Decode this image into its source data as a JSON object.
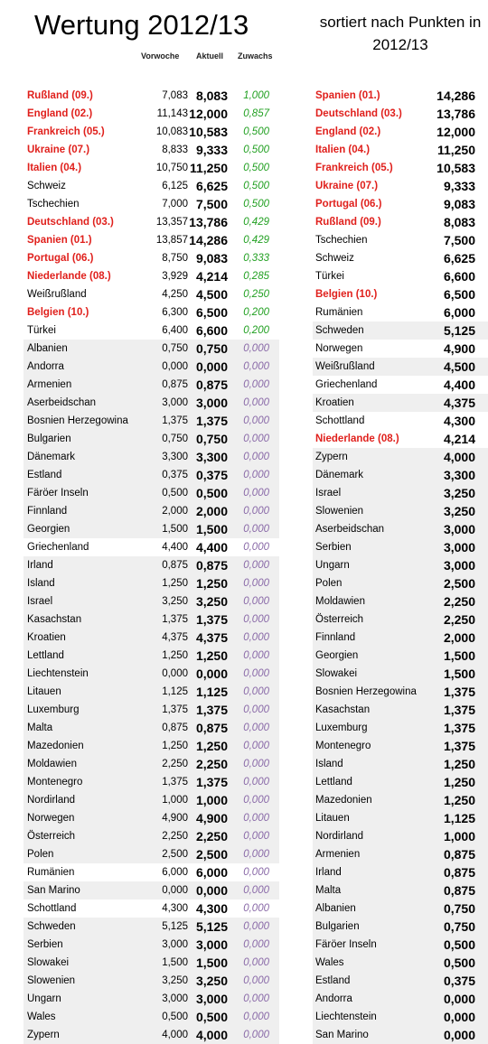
{
  "title": "Wertung 2012/13",
  "subtitle": "sortiert nach Punkten in 2012/13",
  "headers": {
    "prev": "Vorwoche",
    "cur": "Aktuell",
    "gain": "Zuwachs"
  },
  "colors": {
    "highlight": "#e0201c",
    "gain_positive": "#22a022",
    "gain_zero": "#8a6aa8",
    "shade": "#efefef"
  },
  "left_table": [
    {
      "name": "Rußland (09.)",
      "prev": "7,083",
      "cur": "8,083",
      "gain": "1,000",
      "highlight": true
    },
    {
      "name": "England (02.)",
      "prev": "11,143",
      "cur": "12,000",
      "gain": "0,857",
      "highlight": true
    },
    {
      "name": "Frankreich (05.)",
      "prev": "10,083",
      "cur": "10,583",
      "gain": "0,500",
      "highlight": true
    },
    {
      "name": "Ukraine (07.)",
      "prev": "8,833",
      "cur": "9,333",
      "gain": "0,500",
      "highlight": true
    },
    {
      "name": "Italien (04.)",
      "prev": "10,750",
      "cur": "11,250",
      "gain": "0,500",
      "highlight": true
    },
    {
      "name": "Schweiz",
      "prev": "6,125",
      "cur": "6,625",
      "gain": "0,500",
      "highlight": false
    },
    {
      "name": "Tschechien",
      "prev": "7,000",
      "cur": "7,500",
      "gain": "0,500",
      "highlight": false
    },
    {
      "name": "Deutschland (03.)",
      "prev": "13,357",
      "cur": "13,786",
      "gain": "0,429",
      "highlight": true
    },
    {
      "name": "Spanien (01.)",
      "prev": "13,857",
      "cur": "14,286",
      "gain": "0,429",
      "highlight": true
    },
    {
      "name": "Portugal (06.)",
      "prev": "8,750",
      "cur": "9,083",
      "gain": "0,333",
      "highlight": true
    },
    {
      "name": "Niederlande (08.)",
      "prev": "3,929",
      "cur": "4,214",
      "gain": "0,285",
      "highlight": true
    },
    {
      "name": "Weißrußland",
      "prev": "4,250",
      "cur": "4,500",
      "gain": "0,250",
      "highlight": false
    },
    {
      "name": "Belgien (10.)",
      "prev": "6,300",
      "cur": "6,500",
      "gain": "0,200",
      "highlight": true
    },
    {
      "name": "Türkei",
      "prev": "6,400",
      "cur": "6,600",
      "gain": "0,200",
      "highlight": false
    },
    {
      "name": "Albanien",
      "prev": "0,750",
      "cur": "0,750",
      "gain": "0,000",
      "highlight": false
    },
    {
      "name": "Andorra",
      "prev": "0,000",
      "cur": "0,000",
      "gain": "0,000",
      "highlight": false
    },
    {
      "name": "Armenien",
      "prev": "0,875",
      "cur": "0,875",
      "gain": "0,000",
      "highlight": false
    },
    {
      "name": "Aserbeidschan",
      "prev": "3,000",
      "cur": "3,000",
      "gain": "0,000",
      "highlight": false
    },
    {
      "name": "Bosnien Herzegowina",
      "prev": "1,375",
      "cur": "1,375",
      "gain": "0,000",
      "highlight": false
    },
    {
      "name": "Bulgarien",
      "prev": "0,750",
      "cur": "0,750",
      "gain": "0,000",
      "highlight": false
    },
    {
      "name": "Dänemark",
      "prev": "3,300",
      "cur": "3,300",
      "gain": "0,000",
      "highlight": false
    },
    {
      "name": "Estland",
      "prev": "0,375",
      "cur": "0,375",
      "gain": "0,000",
      "highlight": false
    },
    {
      "name": "Färöer Inseln",
      "prev": "0,500",
      "cur": "0,500",
      "gain": "0,000",
      "highlight": false
    },
    {
      "name": "Finnland",
      "prev": "2,000",
      "cur": "2,000",
      "gain": "0,000",
      "highlight": false
    },
    {
      "name": "Georgien",
      "prev": "1,500",
      "cur": "1,500",
      "gain": "0,000",
      "highlight": false
    },
    {
      "name": "Griechenland",
      "prev": "4,400",
      "cur": "4,400",
      "gain": "0,000",
      "highlight": false
    },
    {
      "name": "Irland",
      "prev": "0,875",
      "cur": "0,875",
      "gain": "0,000",
      "highlight": false
    },
    {
      "name": "Island",
      "prev": "1,250",
      "cur": "1,250",
      "gain": "0,000",
      "highlight": false
    },
    {
      "name": "Israel",
      "prev": "3,250",
      "cur": "3,250",
      "gain": "0,000",
      "highlight": false
    },
    {
      "name": "Kasachstan",
      "prev": "1,375",
      "cur": "1,375",
      "gain": "0,000",
      "highlight": false
    },
    {
      "name": "Kroatien",
      "prev": "4,375",
      "cur": "4,375",
      "gain": "0,000",
      "highlight": false
    },
    {
      "name": "Lettland",
      "prev": "1,250",
      "cur": "1,250",
      "gain": "0,000",
      "highlight": false
    },
    {
      "name": "Liechtenstein",
      "prev": "0,000",
      "cur": "0,000",
      "gain": "0,000",
      "highlight": false
    },
    {
      "name": "Litauen",
      "prev": "1,125",
      "cur": "1,125",
      "gain": "0,000",
      "highlight": false
    },
    {
      "name": "Luxemburg",
      "prev": "1,375",
      "cur": "1,375",
      "gain": "0,000",
      "highlight": false
    },
    {
      "name": "Malta",
      "prev": "0,875",
      "cur": "0,875",
      "gain": "0,000",
      "highlight": false
    },
    {
      "name": "Mazedonien",
      "prev": "1,250",
      "cur": "1,250",
      "gain": "0,000",
      "highlight": false
    },
    {
      "name": "Moldawien",
      "prev": "2,250",
      "cur": "2,250",
      "gain": "0,000",
      "highlight": false
    },
    {
      "name": "Montenegro",
      "prev": "1,375",
      "cur": "1,375",
      "gain": "0,000",
      "highlight": false
    },
    {
      "name": "Nordirland",
      "prev": "1,000",
      "cur": "1,000",
      "gain": "0,000",
      "highlight": false
    },
    {
      "name": "Norwegen",
      "prev": "4,900",
      "cur": "4,900",
      "gain": "0,000",
      "highlight": false
    },
    {
      "name": "Österreich",
      "prev": "2,250",
      "cur": "2,250",
      "gain": "0,000",
      "highlight": false
    },
    {
      "name": "Polen",
      "prev": "2,500",
      "cur": "2,500",
      "gain": "0,000",
      "highlight": false
    },
    {
      "name": "Rumänien",
      "prev": "6,000",
      "cur": "6,000",
      "gain": "0,000",
      "highlight": false
    },
    {
      "name": "San Marino",
      "prev": "0,000",
      "cur": "0,000",
      "gain": "0,000",
      "highlight": false
    },
    {
      "name": "Schottland",
      "prev": "4,300",
      "cur": "4,300",
      "gain": "0,000",
      "highlight": false
    },
    {
      "name": "Schweden",
      "prev": "5,125",
      "cur": "5,125",
      "gain": "0,000",
      "highlight": false
    },
    {
      "name": "Serbien",
      "prev": "3,000",
      "cur": "3,000",
      "gain": "0,000",
      "highlight": false
    },
    {
      "name": "Slowakei",
      "prev": "1,500",
      "cur": "1,500",
      "gain": "0,000",
      "highlight": false
    },
    {
      "name": "Slowenien",
      "prev": "3,250",
      "cur": "3,250",
      "gain": "0,000",
      "highlight": false
    },
    {
      "name": "Ungarn",
      "prev": "3,000",
      "cur": "3,000",
      "gain": "0,000",
      "highlight": false
    },
    {
      "name": "Wales",
      "prev": "0,500",
      "cur": "0,500",
      "gain": "0,000",
      "highlight": false
    },
    {
      "name": "Zypern",
      "prev": "4,000",
      "cur": "4,000",
      "gain": "0,000",
      "highlight": false
    }
  ],
  "right_table": [
    {
      "name": "Spanien (01.)",
      "pts": "14,286",
      "highlight": true
    },
    {
      "name": "Deutschland (03.)",
      "pts": "13,786",
      "highlight": true
    },
    {
      "name": "England (02.)",
      "pts": "12,000",
      "highlight": true
    },
    {
      "name": "Italien (04.)",
      "pts": "11,250",
      "highlight": true
    },
    {
      "name": "Frankreich (05.)",
      "pts": "10,583",
      "highlight": true
    },
    {
      "name": "Ukraine (07.)",
      "pts": "9,333",
      "highlight": true
    },
    {
      "name": "Portugal (06.)",
      "pts": "9,083",
      "highlight": true
    },
    {
      "name": "Rußland (09.)",
      "pts": "8,083",
      "highlight": true
    },
    {
      "name": "Tschechien",
      "pts": "7,500",
      "highlight": false
    },
    {
      "name": "Schweiz",
      "pts": "6,625",
      "highlight": false
    },
    {
      "name": "Türkei",
      "pts": "6,600",
      "highlight": false
    },
    {
      "name": "Belgien (10.)",
      "pts": "6,500",
      "highlight": true
    },
    {
      "name": "Rumänien",
      "pts": "6,000",
      "highlight": false
    },
    {
      "name": "Schweden",
      "pts": "5,125",
      "highlight": false
    },
    {
      "name": "Norwegen",
      "pts": "4,900",
      "highlight": false
    },
    {
      "name": "Weißrußland",
      "pts": "4,500",
      "highlight": false
    },
    {
      "name": "Griechenland",
      "pts": "4,400",
      "highlight": false
    },
    {
      "name": "Kroatien",
      "pts": "4,375",
      "highlight": false
    },
    {
      "name": "Schottland",
      "pts": "4,300",
      "highlight": false
    },
    {
      "name": "Niederlande (08.)",
      "pts": "4,214",
      "highlight": true
    },
    {
      "name": "Zypern",
      "pts": "4,000",
      "highlight": false
    },
    {
      "name": "Dänemark",
      "pts": "3,300",
      "highlight": false
    },
    {
      "name": "Israel",
      "pts": "3,250",
      "highlight": false
    },
    {
      "name": "Slowenien",
      "pts": "3,250",
      "highlight": false
    },
    {
      "name": "Aserbeidschan",
      "pts": "3,000",
      "highlight": false
    },
    {
      "name": "Serbien",
      "pts": "3,000",
      "highlight": false
    },
    {
      "name": "Ungarn",
      "pts": "3,000",
      "highlight": false
    },
    {
      "name": "Polen",
      "pts": "2,500",
      "highlight": false
    },
    {
      "name": "Moldawien",
      "pts": "2,250",
      "highlight": false
    },
    {
      "name": "Österreich",
      "pts": "2,250",
      "highlight": false
    },
    {
      "name": "Finnland",
      "pts": "2,000",
      "highlight": false
    },
    {
      "name": "Georgien",
      "pts": "1,500",
      "highlight": false
    },
    {
      "name": "Slowakei",
      "pts": "1,500",
      "highlight": false
    },
    {
      "name": "Bosnien Herzegowina",
      "pts": "1,375",
      "highlight": false
    },
    {
      "name": "Kasachstan",
      "pts": "1,375",
      "highlight": false
    },
    {
      "name": "Luxemburg",
      "pts": "1,375",
      "highlight": false
    },
    {
      "name": "Montenegro",
      "pts": "1,375",
      "highlight": false
    },
    {
      "name": "Island",
      "pts": "1,250",
      "highlight": false
    },
    {
      "name": "Lettland",
      "pts": "1,250",
      "highlight": false
    },
    {
      "name": "Mazedonien",
      "pts": "1,250",
      "highlight": false
    },
    {
      "name": "Litauen",
      "pts": "1,125",
      "highlight": false
    },
    {
      "name": "Nordirland",
      "pts": "1,000",
      "highlight": false
    },
    {
      "name": "Armenien",
      "pts": "0,875",
      "highlight": false
    },
    {
      "name": "Irland",
      "pts": "0,875",
      "highlight": false
    },
    {
      "name": "Malta",
      "pts": "0,875",
      "highlight": false
    },
    {
      "name": "Albanien",
      "pts": "0,750",
      "highlight": false
    },
    {
      "name": "Bulgarien",
      "pts": "0,750",
      "highlight": false
    },
    {
      "name": "Färöer Inseln",
      "pts": "0,500",
      "highlight": false
    },
    {
      "name": "Wales",
      "pts": "0,500",
      "highlight": false
    },
    {
      "name": "Estland",
      "pts": "0,375",
      "highlight": false
    },
    {
      "name": "Andorra",
      "pts": "0,000",
      "highlight": false
    },
    {
      "name": "Liechtenstein",
      "pts": "0,000",
      "highlight": false
    },
    {
      "name": "San Marino",
      "pts": "0,000",
      "highlight": false
    }
  ]
}
